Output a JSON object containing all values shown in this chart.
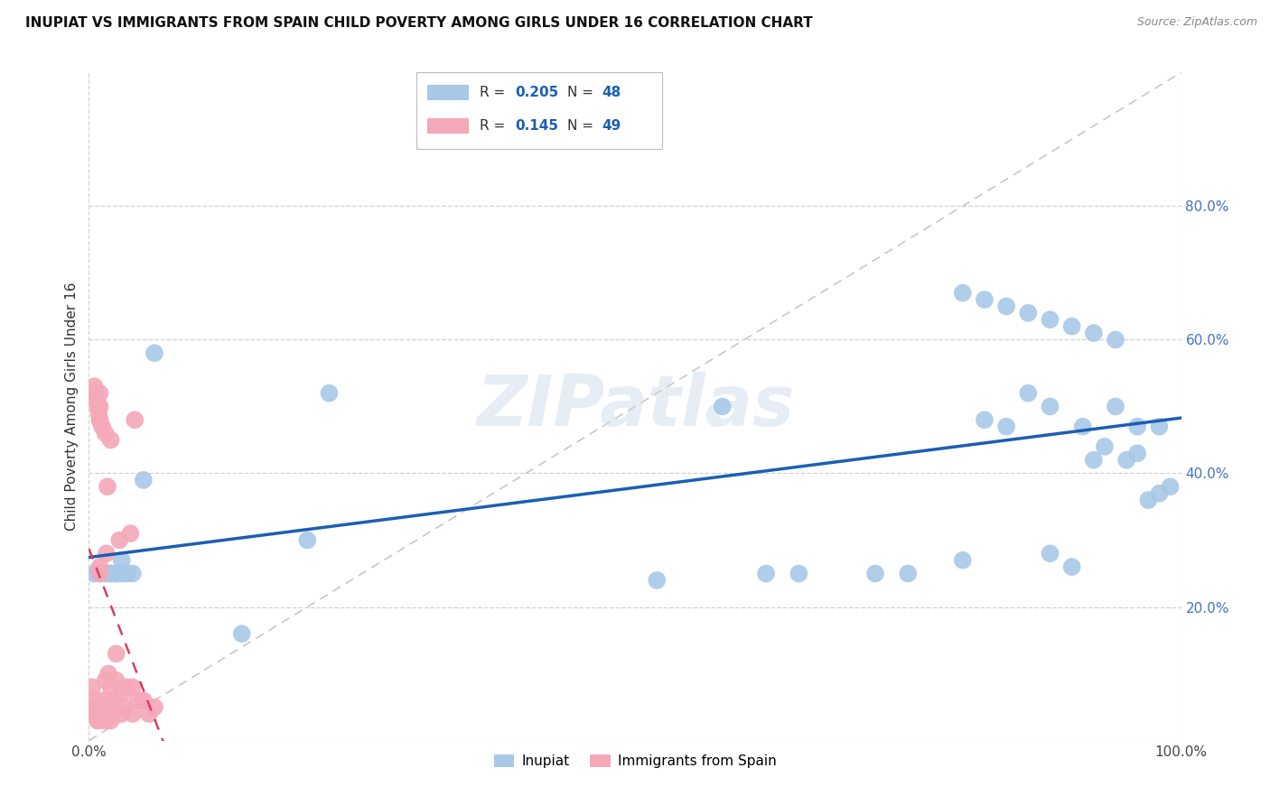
{
  "title": "INUPIAT VS IMMIGRANTS FROM SPAIN CHILD POVERTY AMONG GIRLS UNDER 16 CORRELATION CHART",
  "source": "Source: ZipAtlas.com",
  "ylabel": "Child Poverty Among Girls Under 16",
  "r_inupiat": 0.205,
  "n_inupiat": 48,
  "r_spain": 0.145,
  "n_spain": 49,
  "xlim": [
    0.0,
    1.0
  ],
  "ylim": [
    0.0,
    1.0
  ],
  "xticks": [
    0.0,
    1.0
  ],
  "xticklabels": [
    "0.0%",
    "100.0%"
  ],
  "yticks": [
    0.0,
    0.2,
    0.4,
    0.6,
    0.8
  ],
  "yticklabels": [
    "",
    "20.0%",
    "40.0%",
    "60.0%",
    "80.0%"
  ],
  "watermark": "ZIPatlas",
  "color_inupiat": "#a8c8e8",
  "color_spain": "#f4a8b8",
  "line_color_inupiat": "#1a5fb4",
  "line_color_spain": "#d44060",
  "diagonal_color": "#c8c8c8",
  "inupiat_x": [
    0.005,
    0.01,
    0.015,
    0.02,
    0.02,
    0.025,
    0.025,
    0.03,
    0.03,
    0.035,
    0.04,
    0.05,
    0.06,
    0.14,
    0.2,
    0.22,
    0.52,
    0.58,
    0.62,
    0.65,
    0.72,
    0.75,
    0.8,
    0.82,
    0.84,
    0.86,
    0.88,
    0.88,
    0.9,
    0.91,
    0.92,
    0.93,
    0.94,
    0.95,
    0.96,
    0.97,
    0.98,
    0.99,
    0.8,
    0.82,
    0.84,
    0.86,
    0.88,
    0.9,
    0.92,
    0.94,
    0.96,
    0.98
  ],
  "inupiat_y": [
    0.25,
    0.25,
    0.25,
    0.25,
    0.25,
    0.25,
    0.25,
    0.25,
    0.27,
    0.25,
    0.25,
    0.39,
    0.58,
    0.16,
    0.3,
    0.52,
    0.24,
    0.5,
    0.25,
    0.25,
    0.25,
    0.25,
    0.27,
    0.48,
    0.47,
    0.52,
    0.28,
    0.5,
    0.26,
    0.47,
    0.42,
    0.44,
    0.5,
    0.42,
    0.43,
    0.36,
    0.37,
    0.38,
    0.67,
    0.66,
    0.65,
    0.64,
    0.63,
    0.62,
    0.61,
    0.6,
    0.47,
    0.47
  ],
  "spain_x": [
    0.003,
    0.004,
    0.005,
    0.006,
    0.007,
    0.008,
    0.009,
    0.01,
    0.01,
    0.01,
    0.01,
    0.01,
    0.012,
    0.013,
    0.014,
    0.015,
    0.015,
    0.016,
    0.017,
    0.018,
    0.02,
    0.02,
    0.02,
    0.02,
    0.022,
    0.025,
    0.025,
    0.028,
    0.03,
    0.03,
    0.032,
    0.035,
    0.038,
    0.04,
    0.04,
    0.042,
    0.045,
    0.05,
    0.055,
    0.06,
    0.005,
    0.006,
    0.007,
    0.008,
    0.009,
    0.01,
    0.012,
    0.015,
    0.02
  ],
  "spain_y": [
    0.08,
    0.06,
    0.05,
    0.04,
    0.04,
    0.03,
    0.03,
    0.52,
    0.5,
    0.48,
    0.26,
    0.25,
    0.06,
    0.05,
    0.04,
    0.03,
    0.09,
    0.28,
    0.38,
    0.1,
    0.03,
    0.04,
    0.05,
    0.08,
    0.06,
    0.09,
    0.13,
    0.3,
    0.04,
    0.07,
    0.05,
    0.08,
    0.31,
    0.04,
    0.08,
    0.48,
    0.06,
    0.06,
    0.04,
    0.05,
    0.53,
    0.52,
    0.51,
    0.5,
    0.49,
    0.48,
    0.47,
    0.46,
    0.45
  ]
}
